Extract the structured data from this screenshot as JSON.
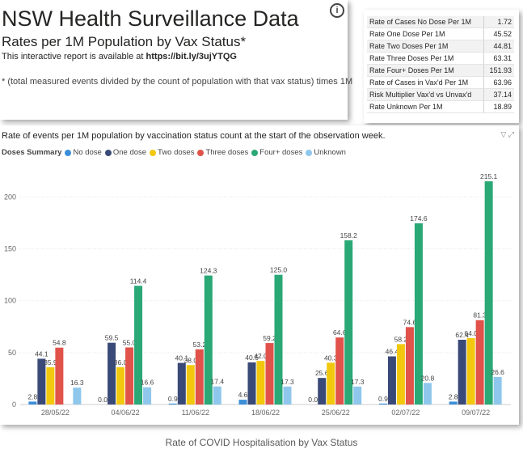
{
  "header": {
    "title": "NSW Health Surveillance Data",
    "subtitle": "Rates per 1M Population by Vax Status*",
    "available_text": "This interactive report is available at",
    "available_link": "https://bit.ly/3ujYTQG",
    "footnote": "* (total measured events divided by the count of population with that vax status) times 1M"
  },
  "stats": [
    {
      "label": "Rate of Cases No Dose Per 1M",
      "value": "1.72"
    },
    {
      "label": "Rate One Dose Per 1M",
      "value": "45.52"
    },
    {
      "label": "Rate Two Doses Per 1M",
      "value": "44.81"
    },
    {
      "label": "Rate Three Doses Per 1M",
      "value": "63.31"
    },
    {
      "label": "Rate Four+ Doses Per 1M",
      "value": "151.93"
    },
    {
      "label": "Rate of Cases in Vax'd Per 1M",
      "value": "63.96"
    },
    {
      "label": "Risk Multiplier Vax'd vs Unvax'd",
      "value": "37.14"
    },
    {
      "label": "Rate Unknown Per 1M",
      "value": "18.89"
    }
  ],
  "chart_title": "Rate of events per 1M population by vaccination status count at the start of the observation week.",
  "caption": "Rate of COVID Hospitalisation by Vax Status",
  "chart_data": {
    "type": "bar",
    "legend_title": "Doses Summary",
    "categories": [
      "28/05/22",
      "04/06/22",
      "11/06/22",
      "18/06/22",
      "25/06/22",
      "02/07/22",
      "09/07/22"
    ],
    "ylim": [
      0,
      230
    ],
    "yticks": [
      0,
      50,
      100,
      150,
      200
    ],
    "legend_position": "top-left",
    "grid": true,
    "series": [
      {
        "name": "No dose",
        "color": "#3b8fd9",
        "values": [
          2.8,
          0.0,
          0.9,
          4.6,
          0.0,
          0.9,
          2.8
        ]
      },
      {
        "name": "One dose",
        "color": "#3a4a78",
        "values": [
          44.1,
          59.5,
          40.1,
          40.6,
          25.6,
          46.4,
          62.4
        ]
      },
      {
        "name": "Two doses",
        "color": "#f2c80f",
        "values": [
          35.9,
          36.0,
          38.0,
          42.0,
          40.3,
          58.2,
          64.0
        ]
      },
      {
        "name": "Three doses",
        "color": "#e0524a",
        "values": [
          54.8,
          55.0,
          53.2,
          59.2,
          64.6,
          74.6,
          81.3
        ]
      },
      {
        "name": "Four+ doses",
        "color": "#2aa876",
        "values": [
          0,
          114.4,
          124.3,
          125.0,
          158.2,
          174.6,
          215.1
        ]
      },
      {
        "name": "Unknown",
        "color": "#8fc7ec",
        "values": [
          16.3,
          16.6,
          17.4,
          17.3,
          17.3,
          20.8,
          26.6
        ]
      }
    ],
    "data_labels": [
      [
        "2.8",
        "44.1",
        "35.9",
        "54.8",
        "",
        "16.3"
      ],
      [
        "0.0",
        "59.5",
        "36.0",
        "55.0",
        "114.4",
        "16.6"
      ],
      [
        "0.9",
        "40.1",
        "38.0",
        "53.2",
        "124.3",
        "17.4"
      ],
      [
        "4.6",
        "40.6",
        "42.0",
        "59.2",
        "125.0",
        "17.3"
      ],
      [
        "0.0",
        "25.6",
        "40.3",
        "64.6",
        "158.2",
        "17.3"
      ],
      [
        "0.9",
        "46.4",
        "58.2",
        "74.6",
        "174.6",
        "20.8"
      ],
      [
        "2.8",
        "62.4",
        "64.0",
        "81.3",
        "215.1",
        "26.6"
      ]
    ]
  }
}
